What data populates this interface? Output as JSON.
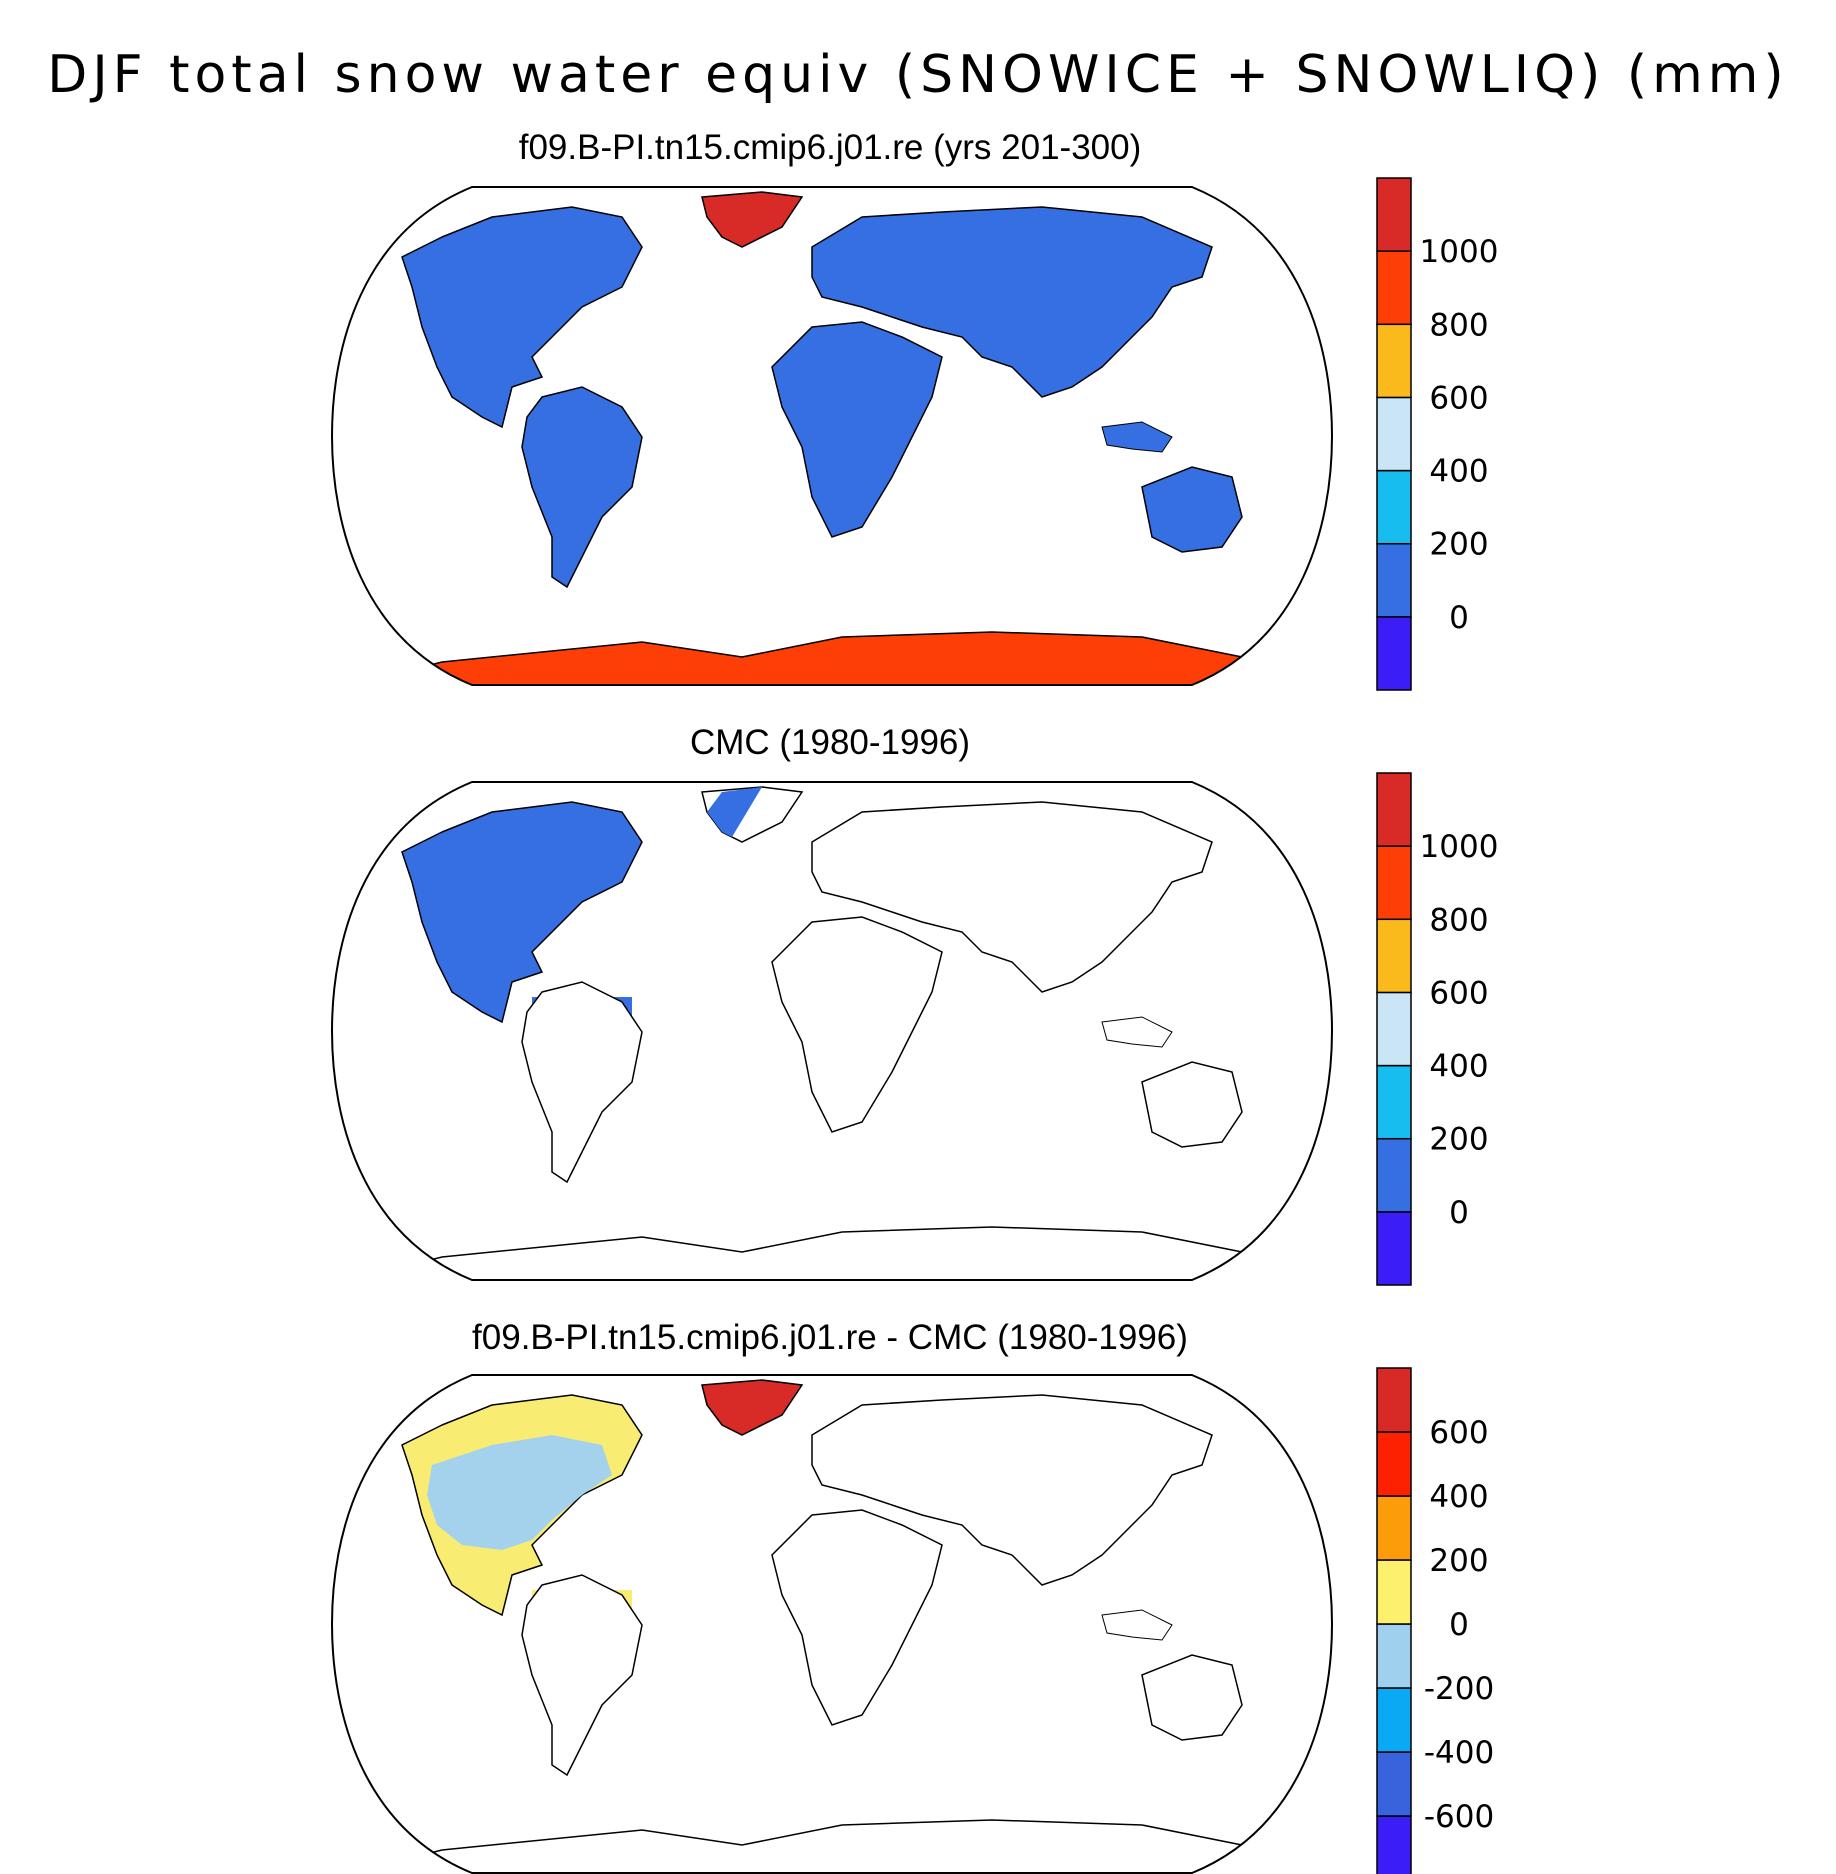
{
  "figure": {
    "title": "DJF total snow water equiv (SNOWICE + SNOWLIQ) (mm)"
  },
  "panels": [
    {
      "title": "f09.B-PI.tn15.cmip6.j01.re (yrs 201-300)",
      "colorbar": {
        "colors": [
          "#3b1df5",
          "#366fe1",
          "#18bdf0",
          "#c9e5f6",
          "#fbba1c",
          "#fd3f07",
          "#d82a26"
        ],
        "labels": [
          "0",
          "200",
          "400",
          "600",
          "800",
          "1000"
        ]
      },
      "fills": {
        "land": "#366fe1",
        "greenland": "#d82a26",
        "antarctica": "#fd3f07"
      }
    },
    {
      "title": "CMC (1980-1996)",
      "colorbar": {
        "colors": [
          "#3b1df5",
          "#366fe1",
          "#18bdf0",
          "#c9e5f6",
          "#fbba1c",
          "#fd3f07",
          "#d82a26"
        ],
        "labels": [
          "0",
          "200",
          "400",
          "600",
          "800",
          "1000"
        ]
      },
      "fills": {
        "north_america": "#366fe1"
      }
    },
    {
      "title": "f09.B-PI.tn15.cmip6.j01.re - CMC (1980-1996)",
      "colorbar": {
        "colors": [
          "#3b1df5",
          "#3763dc",
          "#09aaf3",
          "#9fd1ee",
          "#fdf06c",
          "#fc9c0b",
          "#fd2101",
          "#d72a27"
        ],
        "labels": [
          "-600",
          "-400",
          "-200",
          "0",
          "200",
          "400",
          "600"
        ]
      },
      "fills": {
        "north_america_yellow": "#f9ec72",
        "north_america_lightblue": "#a4d2ec",
        "greenland": "#d82a26"
      }
    }
  ]
}
